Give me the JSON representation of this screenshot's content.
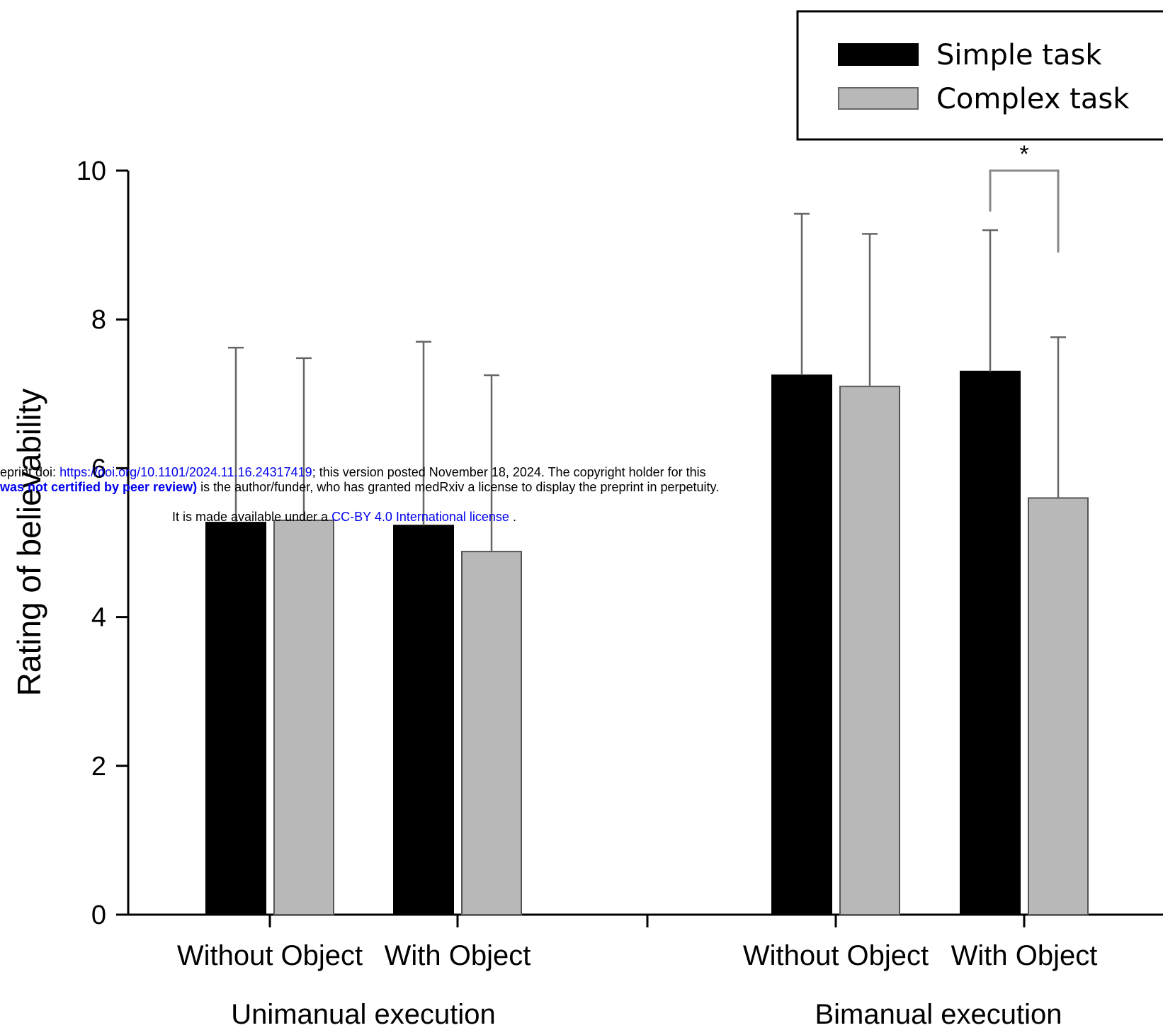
{
  "chart_data": {
    "type": "bar",
    "ylabel": "Rating of believability",
    "ylim": [
      0,
      10
    ],
    "yticks": [
      0,
      2,
      4,
      6,
      8,
      10
    ],
    "groups": [
      {
        "label": "Unimanual execution",
        "categories": [
          "Without Object",
          "With Object"
        ]
      },
      {
        "label": "Bimanual execution",
        "categories": [
          "Without Object",
          "With Object"
        ]
      }
    ],
    "categories": [
      "Without Object",
      "With Object",
      "Without Object",
      "With Object"
    ],
    "series": [
      {
        "name": "Simple task",
        "color": "#000000",
        "values": [
          5.27,
          5.23,
          7.25,
          7.3
        ],
        "error": [
          2.35,
          2.47,
          2.17,
          1.9
        ]
      },
      {
        "name": "Complex task",
        "color": "#b8b8b8",
        "values": [
          5.3,
          4.88,
          7.1,
          5.6
        ],
        "error": [
          2.18,
          2.37,
          2.05,
          2.16
        ]
      }
    ],
    "significance": [
      {
        "group": 3,
        "label": "*"
      }
    ],
    "legend": {
      "placement": "top-right"
    }
  },
  "banner": {
    "line1_prefix": "eprint doi: ",
    "line1_link": "https://doi.org/10.1101/2024.11.16.24317419",
    "line1_rest": "; this version posted November 18, 2024. The copyright holder for this",
    "line2_bold": " was not certified by peer review)",
    "line2_rest": " is the author/funder, who has granted medRxiv a license to display the preprint in perpetuity.",
    "line3_prefix": "It is made available under a ",
    "line3_link": "CC-BY 4.0 International license",
    "line3_suffix": " ."
  }
}
